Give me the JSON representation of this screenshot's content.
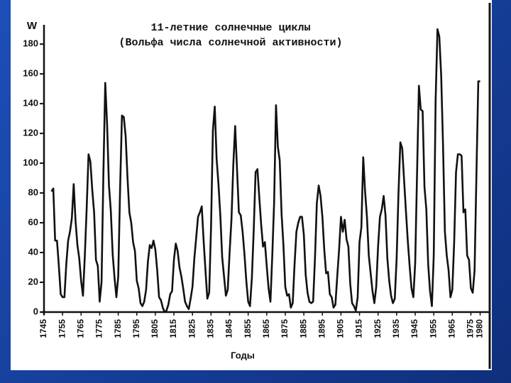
{
  "chart_data": {
    "type": "line",
    "title": "11-летние солнечные циклы",
    "subtitle": "(Вольфа числа солнечной активности)",
    "y_label": "W",
    "x_label": "Годы",
    "color": "#111111",
    "xlim": [
      1745,
      1984
    ],
    "ylim": [
      0,
      192
    ],
    "xticks": [
      1745,
      1755,
      1765,
      1775,
      1785,
      1795,
      1805,
      1815,
      1825,
      1835,
      1845,
      1855,
      1865,
      1875,
      1885,
      1895,
      1905,
      1915,
      1925,
      1935,
      1945,
      1955,
      1965,
      1975,
      1980
    ],
    "yticks": [
      0,
      20,
      40,
      60,
      80,
      100,
      120,
      140,
      160,
      180
    ],
    "x": [
      1749,
      1750,
      1751,
      1752,
      1753,
      1754,
      1755,
      1756,
      1757,
      1758,
      1759,
      1760,
      1761,
      1762,
      1763,
      1764,
      1765,
      1766,
      1767,
      1768,
      1769,
      1770,
      1771,
      1772,
      1773,
      1774,
      1775,
      1776,
      1777,
      1778,
      1779,
      1780,
      1781,
      1782,
      1783,
      1784,
      1785,
      1786,
      1787,
      1788,
      1789,
      1790,
      1791,
      1792,
      1793,
      1794,
      1795,
      1796,
      1797,
      1798,
      1799,
      1800,
      1801,
      1802,
      1803,
      1804,
      1805,
      1806,
      1807,
      1808,
      1809,
      1810,
      1811,
      1812,
      1813,
      1814,
      1815,
      1816,
      1817,
      1818,
      1819,
      1820,
      1821,
      1822,
      1823,
      1824,
      1825,
      1826,
      1827,
      1828,
      1829,
      1830,
      1831,
      1832,
      1833,
      1834,
      1835,
      1836,
      1837,
      1838,
      1839,
      1840,
      1841,
      1842,
      1843,
      1844,
      1845,
      1846,
      1847,
      1848,
      1849,
      1850,
      1851,
      1852,
      1853,
      1854,
      1855,
      1856,
      1857,
      1858,
      1859,
      1860,
      1861,
      1862,
      1863,
      1864,
      1865,
      1866,
      1867,
      1868,
      1869,
      1870,
      1871,
      1872,
      1873,
      1874,
      1875,
      1876,
      1877,
      1878,
      1879,
      1880,
      1881,
      1882,
      1883,
      1884,
      1885,
      1886,
      1887,
      1888,
      1889,
      1890,
      1891,
      1892,
      1893,
      1894,
      1895,
      1896,
      1897,
      1898,
      1899,
      1900,
      1901,
      1902,
      1903,
      1904,
      1905,
      1906,
      1907,
      1908,
      1909,
      1910,
      1911,
      1912,
      1913,
      1914,
      1915,
      1916,
      1917,
      1918,
      1919,
      1920,
      1921,
      1922,
      1923,
      1924,
      1925,
      1926,
      1927,
      1928,
      1929,
      1930,
      1931,
      1932,
      1933,
      1934,
      1935,
      1936,
      1937,
      1938,
      1939,
      1940,
      1941,
      1942,
      1943,
      1944,
      1945,
      1946,
      1947,
      1948,
      1949,
      1950,
      1951,
      1952,
      1953,
      1954,
      1955,
      1956,
      1957,
      1958,
      1959,
      1960,
      1961,
      1962,
      1963,
      1964,
      1965,
      1966,
      1967,
      1968,
      1969,
      1970,
      1971,
      1972,
      1973,
      1974,
      1975,
      1976,
      1977,
      1978,
      1979,
      1980
    ],
    "values": [
      81,
      83,
      48,
      48,
      31,
      12,
      10,
      10,
      32,
      48,
      54,
      63,
      86,
      61,
      45,
      36,
      21,
      11,
      38,
      70,
      106,
      101,
      82,
      67,
      35,
      31,
      7,
      20,
      93,
      154,
      126,
      85,
      68,
      39,
      23,
      10,
      24,
      83,
      132,
      131,
      118,
      90,
      67,
      60,
      47,
      41,
      21,
      16,
      6,
      4,
      7,
      15,
      34,
      45,
      43,
      48,
      42,
      28,
      10,
      8,
      3,
      0,
      1,
      5,
      12,
      14,
      35,
      46,
      41,
      30,
      24,
      16,
      7,
      4,
      2,
      9,
      17,
      36,
      50,
      64,
      67,
      71,
      48,
      28,
      9,
      13,
      57,
      122,
      138,
      103,
      86,
      65,
      37,
      24,
      11,
      15,
      40,
      62,
      99,
      125,
      96,
      67,
      65,
      54,
      39,
      21,
      7,
      4,
      23,
      55,
      94,
      96,
      77,
      59,
      44,
      47,
      31,
      16,
      7,
      38,
      74,
      139,
      111,
      102,
      66,
      45,
      17,
      11,
      12,
      3,
      6,
      32,
      54,
      60,
      64,
      64,
      52,
      25,
      13,
      7,
      6,
      7,
      36,
      73,
      85,
      78,
      64,
      42,
      26,
      27,
      12,
      10,
      3,
      5,
      24,
      42,
      64,
      54,
      62,
      49,
      44,
      19,
      6,
      4,
      1,
      10,
      47,
      57,
      104,
      81,
      64,
      38,
      26,
      14,
      6,
      17,
      44,
      64,
      69,
      78,
      65,
      36,
      21,
      11,
      6,
      9,
      36,
      80,
      114,
      110,
      89,
      68,
      48,
      31,
      16,
      10,
      33,
      93,
      152,
      136,
      135,
      84,
      69,
      32,
      14,
      4,
      38,
      142,
      190,
      185,
      159,
      112,
      54,
      38,
      28,
      10,
      15,
      47,
      94,
      106,
      106,
      105,
      67,
      69,
      38,
      35,
      16,
      13,
      28,
      93,
      155,
      155
    ]
  }
}
